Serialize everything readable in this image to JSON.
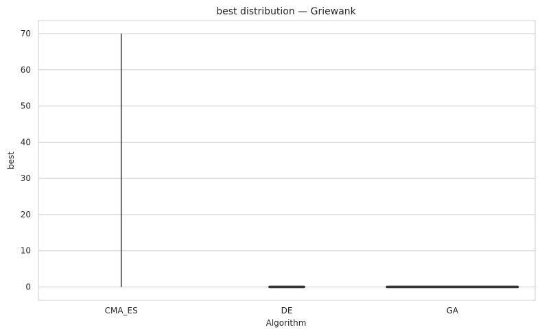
{
  "chart_data": {
    "type": "violin",
    "title": "best distribution — Griewank",
    "xlabel": "Algorithm",
    "ylabel": "best",
    "categories": [
      "CMA_ES",
      "DE",
      "GA"
    ],
    "ylim": [
      -3.7,
      73.6
    ],
    "yticks": [
      0,
      10,
      20,
      30,
      40,
      50,
      60,
      70
    ],
    "grid": true,
    "series": [
      {
        "category": "CMA_ES",
        "min": 0,
        "max": 70.0,
        "median": 0,
        "spread": "very narrow"
      },
      {
        "category": "DE",
        "min": 0,
        "max": 0.1,
        "median": 0,
        "spread": "narrow"
      },
      {
        "category": "GA",
        "min": 0,
        "max": 0.1,
        "median": 0,
        "spread": "wide"
      }
    ],
    "colors": {
      "grid": "#cccccc",
      "frame": "#cccccc",
      "line": "#222222",
      "text": "#262626"
    }
  }
}
